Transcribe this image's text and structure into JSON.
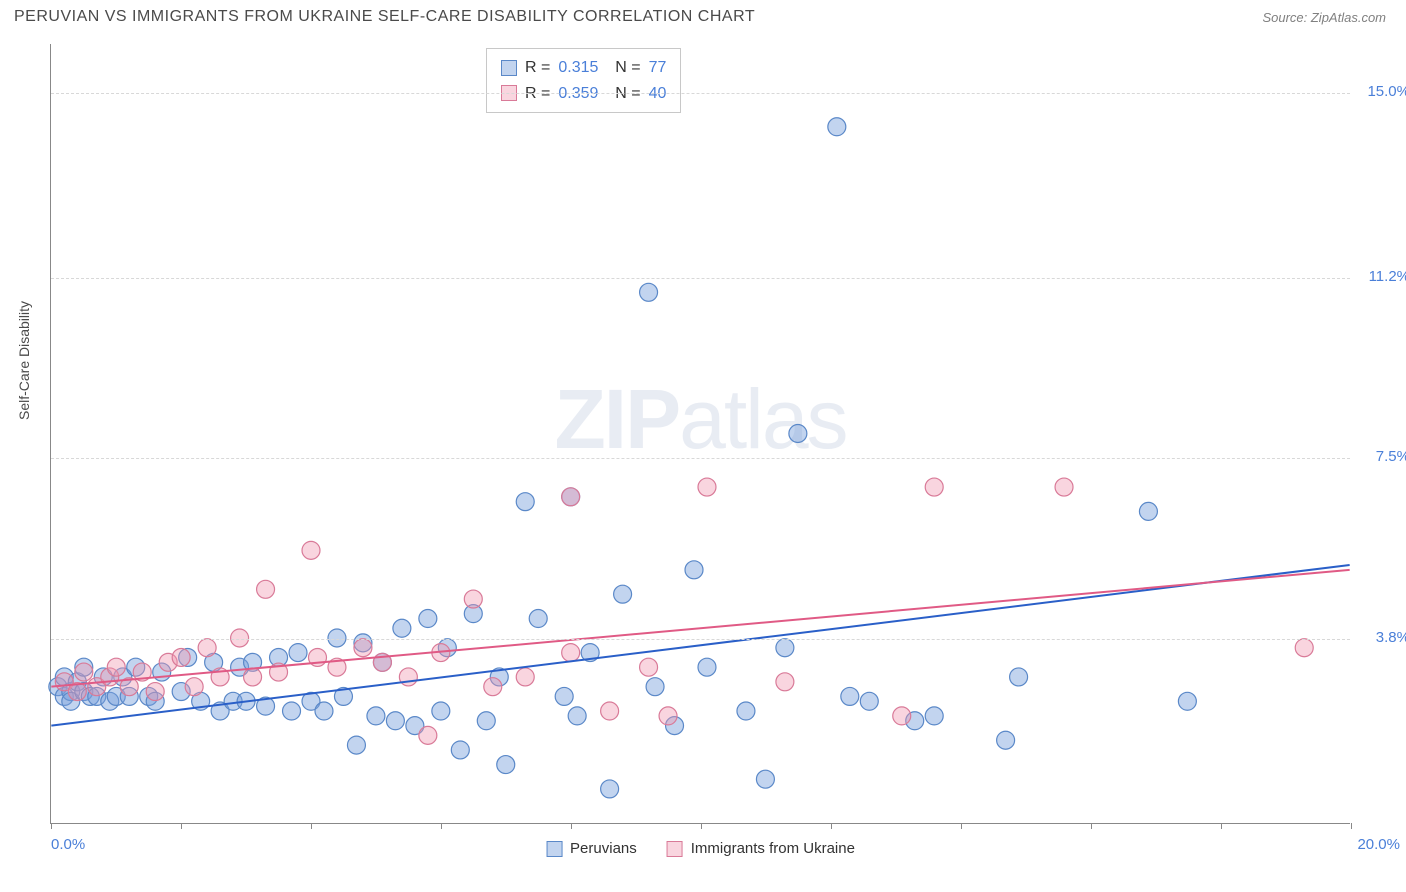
{
  "header": {
    "title": "PERUVIAN VS IMMIGRANTS FROM UKRAINE SELF-CARE DISABILITY CORRELATION CHART",
    "source": "Source: ZipAtlas.com"
  },
  "chart": {
    "type": "scatter",
    "watermark": "ZIPatlas",
    "ylabel": "Self-Care Disability",
    "xlim": [
      0,
      20
    ],
    "ylim": [
      0,
      16
    ],
    "grid_color": "#d8d8d8",
    "axis_color": "#888888",
    "background_color": "#ffffff",
    "xticks": [
      0,
      2,
      4,
      6,
      8,
      10,
      12,
      14,
      16,
      18,
      20
    ],
    "xtick_labels": {
      "0": "0.0%",
      "20": "20.0%"
    },
    "ygrid": [
      {
        "v": 3.8,
        "label": "3.8%"
      },
      {
        "v": 7.5,
        "label": "7.5%"
      },
      {
        "v": 11.2,
        "label": "11.2%"
      },
      {
        "v": 15.0,
        "label": "15.0%"
      }
    ],
    "marker_radius": 9,
    "marker_stroke_width": 1.2,
    "line_width": 2,
    "series": [
      {
        "name": "Peruvians",
        "color_fill": "rgba(120,160,220,0.45)",
        "color_stroke": "#5a88c8",
        "line_color": "#2a5fc8",
        "R": "0.315",
        "N": "77",
        "trend": {
          "x1": 0,
          "y1": 2.0,
          "x2": 20,
          "y2": 5.3
        },
        "points": [
          [
            0.1,
            2.8
          ],
          [
            0.2,
            2.6
          ],
          [
            0.2,
            3.0
          ],
          [
            0.3,
            2.7
          ],
          [
            0.3,
            2.5
          ],
          [
            0.4,
            2.9
          ],
          [
            0.5,
            2.7
          ],
          [
            0.5,
            3.2
          ],
          [
            0.6,
            2.6
          ],
          [
            0.7,
            2.6
          ],
          [
            0.8,
            3.0
          ],
          [
            0.9,
            2.5
          ],
          [
            1.0,
            2.6
          ],
          [
            1.1,
            3.0
          ],
          [
            1.2,
            2.6
          ],
          [
            1.3,
            3.2
          ],
          [
            1.5,
            2.6
          ],
          [
            1.6,
            2.5
          ],
          [
            1.7,
            3.1
          ],
          [
            2.0,
            2.7
          ],
          [
            2.1,
            3.4
          ],
          [
            2.3,
            2.5
          ],
          [
            2.5,
            3.3
          ],
          [
            2.6,
            2.3
          ],
          [
            2.8,
            2.5
          ],
          [
            2.9,
            3.2
          ],
          [
            3.0,
            2.5
          ],
          [
            3.1,
            3.3
          ],
          [
            3.3,
            2.4
          ],
          [
            3.5,
            3.4
          ],
          [
            3.7,
            2.3
          ],
          [
            3.8,
            3.5
          ],
          [
            4.0,
            2.5
          ],
          [
            4.2,
            2.3
          ],
          [
            4.4,
            3.8
          ],
          [
            4.5,
            2.6
          ],
          [
            4.7,
            1.6
          ],
          [
            4.8,
            3.7
          ],
          [
            5.0,
            2.2
          ],
          [
            5.1,
            3.3
          ],
          [
            5.3,
            2.1
          ],
          [
            5.4,
            4.0
          ],
          [
            5.6,
            2.0
          ],
          [
            5.8,
            4.2
          ],
          [
            6.0,
            2.3
          ],
          [
            6.1,
            3.6
          ],
          [
            6.3,
            1.5
          ],
          [
            6.5,
            4.3
          ],
          [
            6.7,
            2.1
          ],
          [
            6.9,
            3.0
          ],
          [
            7.0,
            1.2
          ],
          [
            7.3,
            6.6
          ],
          [
            7.5,
            4.2
          ],
          [
            7.9,
            2.6
          ],
          [
            8.1,
            2.2
          ],
          [
            8.3,
            3.5
          ],
          [
            8.6,
            0.7
          ],
          [
            8.8,
            4.7
          ],
          [
            9.2,
            10.9
          ],
          [
            9.3,
            2.8
          ],
          [
            9.6,
            2.0
          ],
          [
            9.9,
            5.2
          ],
          [
            10.1,
            3.2
          ],
          [
            10.7,
            2.3
          ],
          [
            11.0,
            0.9
          ],
          [
            11.3,
            3.6
          ],
          [
            11.5,
            8.0
          ],
          [
            12.1,
            14.3
          ],
          [
            12.3,
            2.6
          ],
          [
            12.6,
            2.5
          ],
          [
            13.3,
            2.1
          ],
          [
            13.6,
            2.2
          ],
          [
            14.7,
            1.7
          ],
          [
            14.9,
            3.0
          ],
          [
            16.9,
            6.4
          ],
          [
            17.5,
            2.5
          ],
          [
            8.0,
            6.7
          ]
        ]
      },
      {
        "name": "Immigrants from Ukraine",
        "color_fill": "rgba(240,150,175,0.40)",
        "color_stroke": "#d97a98",
        "line_color": "#e05a85",
        "R": "0.359",
        "N": "40",
        "trend": {
          "x1": 0,
          "y1": 2.8,
          "x2": 20,
          "y2": 5.2
        },
        "points": [
          [
            0.2,
            2.9
          ],
          [
            0.4,
            2.7
          ],
          [
            0.5,
            3.1
          ],
          [
            0.7,
            2.8
          ],
          [
            0.9,
            3.0
          ],
          [
            1.0,
            3.2
          ],
          [
            1.2,
            2.8
          ],
          [
            1.4,
            3.1
          ],
          [
            1.6,
            2.7
          ],
          [
            1.8,
            3.3
          ],
          [
            2.0,
            3.4
          ],
          [
            2.2,
            2.8
          ],
          [
            2.4,
            3.6
          ],
          [
            2.6,
            3.0
          ],
          [
            2.9,
            3.8
          ],
          [
            3.1,
            3.0
          ],
          [
            3.3,
            4.8
          ],
          [
            3.5,
            3.1
          ],
          [
            4.0,
            5.6
          ],
          [
            4.1,
            3.4
          ],
          [
            4.4,
            3.2
          ],
          [
            4.8,
            3.6
          ],
          [
            5.1,
            3.3
          ],
          [
            5.5,
            3.0
          ],
          [
            5.8,
            1.8
          ],
          [
            6.0,
            3.5
          ],
          [
            6.5,
            4.6
          ],
          [
            6.8,
            2.8
          ],
          [
            7.3,
            3.0
          ],
          [
            8.0,
            3.5
          ],
          [
            8.6,
            2.3
          ],
          [
            9.2,
            3.2
          ],
          [
            9.5,
            2.2
          ],
          [
            10.1,
            6.9
          ],
          [
            11.3,
            2.9
          ],
          [
            13.1,
            2.2
          ],
          [
            13.6,
            6.9
          ],
          [
            15.6,
            6.9
          ],
          [
            19.3,
            3.6
          ],
          [
            8.0,
            6.7
          ]
        ]
      }
    ],
    "legend_bottom": [
      "Peruvians",
      "Immigrants from Ukraine"
    ]
  }
}
